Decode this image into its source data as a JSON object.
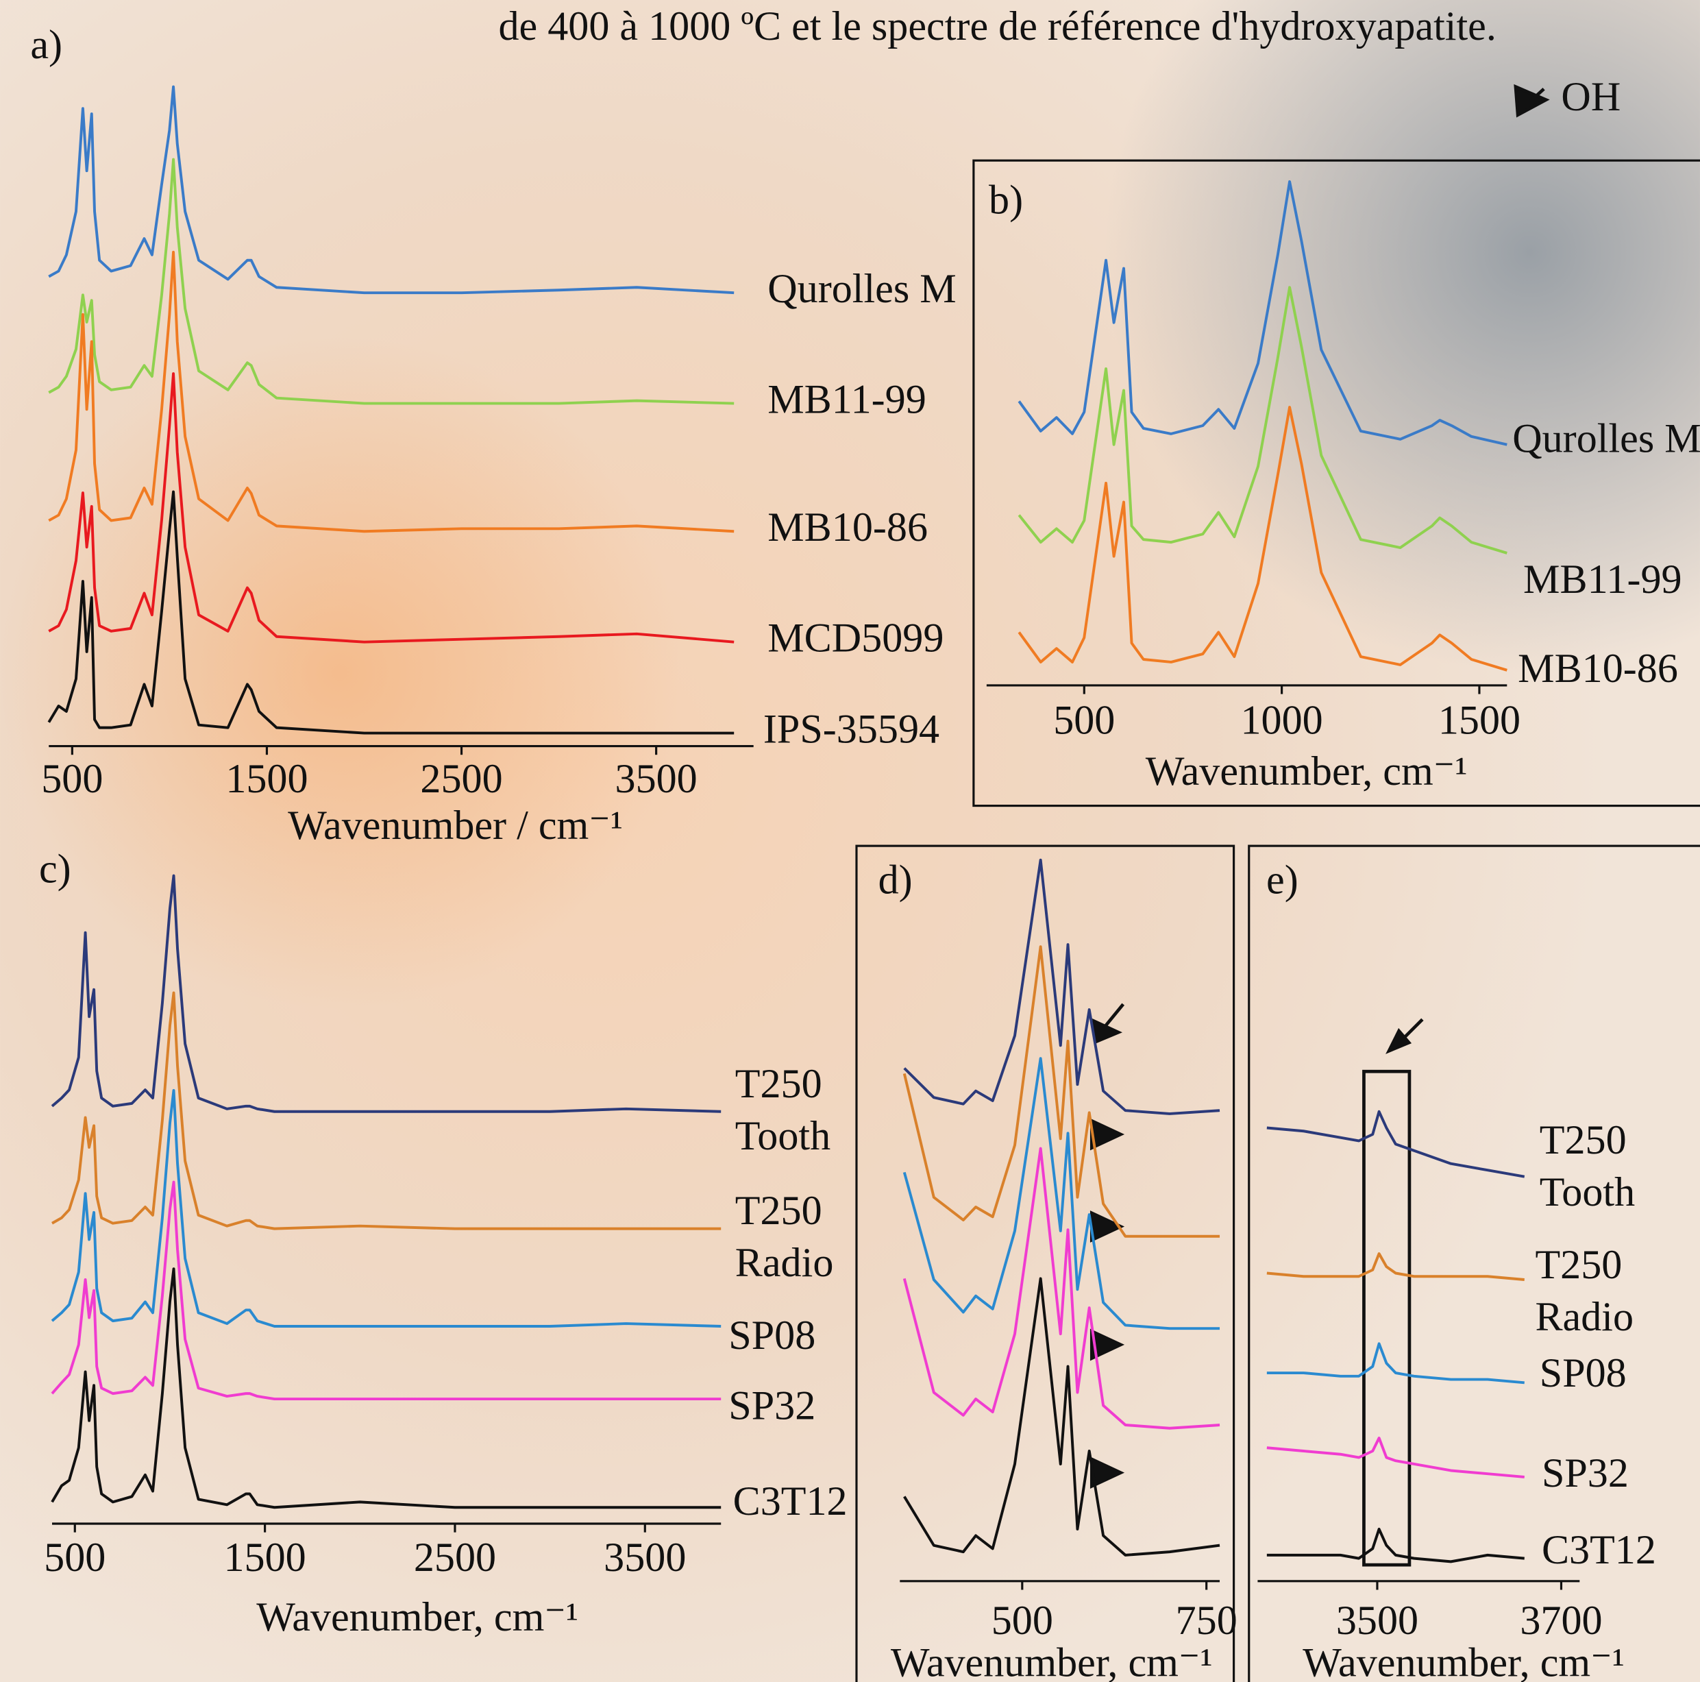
{
  "caption": "de 400 à 1000 ºC et le spectre de référence d'hydroxyapatite.",
  "annotation": "OH",
  "chart_data": [
    {
      "type": "line",
      "title": "a)",
      "x_label": "Wavenumber / cm⁻¹",
      "x": [
        380,
        430,
        470,
        520,
        555,
        575,
        600,
        615,
        640,
        700,
        800,
        870,
        910,
        960,
        1000,
        1020,
        1040,
        1080,
        1150,
        1300,
        1400,
        1420,
        1460,
        1550,
        2000,
        2500,
        3000,
        3400,
        3900
      ],
      "xlim": [
        380,
        4000
      ],
      "xticks": [
        500,
        1500,
        2500,
        3500
      ],
      "series": [
        {
          "name": "Qurolles M",
          "color": "#3a7bc8",
          "values": [
            0.06,
            0.08,
            0.14,
            0.3,
            0.68,
            0.45,
            0.66,
            0.3,
            0.12,
            0.08,
            0.1,
            0.2,
            0.14,
            0.4,
            0.6,
            0.76,
            0.55,
            0.3,
            0.12,
            0.05,
            0.12,
            0.12,
            0.06,
            0.02,
            0.0,
            0.0,
            0.01,
            0.02,
            0.0
          ]
        },
        {
          "name": "MB11-99",
          "color": "#8fd14f",
          "values": [
            0.04,
            0.06,
            0.1,
            0.2,
            0.4,
            0.3,
            0.38,
            0.18,
            0.08,
            0.05,
            0.06,
            0.14,
            0.1,
            0.4,
            0.7,
            0.9,
            0.65,
            0.35,
            0.12,
            0.05,
            0.15,
            0.14,
            0.07,
            0.02,
            0.0,
            0.0,
            0.0,
            0.01,
            0.0
          ]
        },
        {
          "name": "MB10-86",
          "color": "#f07b22",
          "values": [
            0.04,
            0.06,
            0.12,
            0.3,
            0.8,
            0.45,
            0.7,
            0.25,
            0.08,
            0.04,
            0.05,
            0.16,
            0.1,
            0.45,
            0.8,
            1.03,
            0.7,
            0.35,
            0.12,
            0.04,
            0.16,
            0.14,
            0.06,
            0.02,
            0.0,
            0.01,
            0.01,
            0.02,
            0.0
          ]
        },
        {
          "name": "MCD5099",
          "color": "#e8191f",
          "values": [
            0.04,
            0.06,
            0.12,
            0.3,
            0.55,
            0.35,
            0.5,
            0.2,
            0.06,
            0.04,
            0.05,
            0.18,
            0.1,
            0.45,
            0.8,
            0.99,
            0.7,
            0.35,
            0.1,
            0.04,
            0.2,
            0.18,
            0.08,
            0.02,
            0.0,
            0.01,
            0.02,
            0.03,
            0.0
          ]
        },
        {
          "name": "IPS-35594",
          "color": "#111111",
          "values": [
            0.04,
            0.1,
            0.08,
            0.2,
            0.56,
            0.3,
            0.5,
            0.05,
            0.02,
            0.02,
            0.03,
            0.18,
            0.1,
            0.45,
            0.75,
            0.89,
            0.65,
            0.2,
            0.03,
            0.02,
            0.18,
            0.16,
            0.08,
            0.02,
            0.0,
            0.0,
            0.0,
            0.0,
            0.0
          ]
        }
      ]
    },
    {
      "type": "line",
      "title": "b)",
      "x_label": "Wavenumber, cm⁻¹",
      "x": [
        335,
        390,
        430,
        470,
        500,
        555,
        575,
        600,
        620,
        650,
        720,
        800,
        840,
        880,
        940,
        990,
        1020,
        1050,
        1100,
        1200,
        1300,
        1380,
        1400,
        1430,
        1480,
        1570
      ],
      "xlim": [
        253,
        1570
      ],
      "xticks": [
        500,
        1000,
        1500
      ],
      "series": [
        {
          "name": "Qurolles M",
          "color": "#3a7bc8",
          "values": [
            0.16,
            0.05,
            0.1,
            0.04,
            0.12,
            0.68,
            0.45,
            0.65,
            0.12,
            0.06,
            0.04,
            0.07,
            0.13,
            0.06,
            0.3,
            0.7,
            0.97,
            0.75,
            0.35,
            0.05,
            0.02,
            0.07,
            0.09,
            0.07,
            0.03,
            0.0
          ]
        },
        {
          "name": "MB11-99",
          "color": "#8fd14f",
          "values": [
            0.14,
            0.04,
            0.09,
            0.04,
            0.12,
            0.68,
            0.4,
            0.6,
            0.1,
            0.05,
            0.04,
            0.07,
            0.15,
            0.06,
            0.32,
            0.72,
            0.98,
            0.76,
            0.36,
            0.05,
            0.02,
            0.1,
            0.13,
            0.1,
            0.04,
            0.0
          ]
        },
        {
          "name": "MB10-86",
          "color": "#f07b22",
          "values": [
            0.14,
            0.03,
            0.08,
            0.03,
            0.12,
            0.69,
            0.42,
            0.62,
            0.1,
            0.04,
            0.03,
            0.06,
            0.14,
            0.05,
            0.32,
            0.72,
            0.97,
            0.76,
            0.36,
            0.05,
            0.02,
            0.1,
            0.13,
            0.1,
            0.04,
            0.0
          ]
        }
      ]
    },
    {
      "type": "line",
      "title": "c)",
      "x_label": "Wavenumber, cm⁻¹",
      "x": [
        380,
        430,
        470,
        520,
        555,
        575,
        600,
        615,
        640,
        700,
        800,
        870,
        910,
        960,
        1000,
        1020,
        1040,
        1080,
        1150,
        1300,
        1400,
        1420,
        1460,
        1550,
        2000,
        2500,
        3000,
        3400,
        3900
      ],
      "xlim": [
        380,
        3900
      ],
      "xticks": [
        500,
        1500,
        2500,
        3500
      ],
      "series": [
        {
          "name": "T250 Tooth",
          "color": "#2b3a7a",
          "values": [
            0.02,
            0.05,
            0.08,
            0.2,
            0.66,
            0.35,
            0.45,
            0.15,
            0.05,
            0.02,
            0.03,
            0.08,
            0.05,
            0.4,
            0.75,
            0.87,
            0.6,
            0.25,
            0.05,
            0.01,
            0.02,
            0.02,
            0.01,
            0.0,
            0.0,
            0.0,
            0.0,
            0.01,
            0.0
          ]
        },
        {
          "name": "T250 Radio",
          "color": "#d9812b",
          "values": [
            0.02,
            0.04,
            0.07,
            0.18,
            0.41,
            0.3,
            0.38,
            0.12,
            0.04,
            0.02,
            0.03,
            0.08,
            0.05,
            0.4,
            0.75,
            0.87,
            0.6,
            0.25,
            0.05,
            0.01,
            0.03,
            0.03,
            0.01,
            0.0,
            0.01,
            0.0,
            0.0,
            0.0,
            0.0
          ]
        },
        {
          "name": "SP08",
          "color": "#2a8ad0",
          "values": [
            0.02,
            0.05,
            0.08,
            0.2,
            0.49,
            0.32,
            0.42,
            0.14,
            0.05,
            0.02,
            0.03,
            0.09,
            0.05,
            0.4,
            0.75,
            0.87,
            0.6,
            0.25,
            0.05,
            0.01,
            0.06,
            0.06,
            0.02,
            0.0,
            0.0,
            0.0,
            0.0,
            0.01,
            0.0
          ]
        },
        {
          "name": "SP32",
          "color": "#f03cd0",
          "values": [
            0.02,
            0.06,
            0.09,
            0.2,
            0.44,
            0.3,
            0.4,
            0.12,
            0.04,
            0.02,
            0.03,
            0.08,
            0.05,
            0.38,
            0.7,
            0.8,
            0.55,
            0.22,
            0.04,
            0.01,
            0.02,
            0.02,
            0.01,
            0.0,
            0.0,
            0.0,
            0.0,
            0.0,
            0.0
          ]
        },
        {
          "name": "C3T12",
          "color": "#111111",
          "values": [
            0.02,
            0.08,
            0.1,
            0.22,
            0.5,
            0.32,
            0.45,
            0.15,
            0.05,
            0.02,
            0.04,
            0.12,
            0.06,
            0.42,
            0.76,
            0.88,
            0.6,
            0.22,
            0.03,
            0.01,
            0.05,
            0.05,
            0.01,
            0.0,
            0.02,
            0.0,
            0.0,
            0.0,
            0.0
          ]
        }
      ]
    },
    {
      "type": "line",
      "title": "d)",
      "x_label": "Wavenumber, cm⁻¹",
      "x": [
        340,
        380,
        420,
        437,
        460,
        490,
        525,
        552,
        562,
        575,
        591,
        610,
        640,
        700,
        768
      ],
      "xlim": [
        334,
        768
      ],
      "xticks": [
        500,
        750
      ],
      "series": [
        {
          "name": null,
          "color": "#2b3a7a",
          "values": [
            0.15,
            0.06,
            0.04,
            0.08,
            0.05,
            0.25,
            0.79,
            0.22,
            0.53,
            0.1,
            0.33,
            0.08,
            0.02,
            0.01,
            0.02
          ]
        },
        {
          "name": null,
          "color": "#d9812b",
          "values": [
            0.5,
            0.12,
            0.05,
            0.09,
            0.06,
            0.28,
            0.89,
            0.3,
            0.6,
            0.12,
            0.38,
            0.1,
            0.0,
            0.0,
            0.0
          ]
        },
        {
          "name": null,
          "color": "#2a8ad0",
          "values": [
            0.48,
            0.15,
            0.05,
            0.1,
            0.06,
            0.3,
            0.83,
            0.3,
            0.6,
            0.12,
            0.35,
            0.08,
            0.01,
            0.0,
            0.0
          ]
        },
        {
          "name": null,
          "color": "#f03cd0",
          "values": [
            0.47,
            0.12,
            0.05,
            0.1,
            0.06,
            0.3,
            0.87,
            0.3,
            0.62,
            0.12,
            0.38,
            0.08,
            0.02,
            0.01,
            0.02
          ]
        },
        {
          "name": null,
          "color": "#111111",
          "values": [
            0.2,
            0.05,
            0.03,
            0.08,
            0.04,
            0.3,
            0.87,
            0.3,
            0.6,
            0.1,
            0.34,
            0.08,
            0.02,
            0.03,
            0.05
          ]
        }
      ]
    },
    {
      "type": "line",
      "title": "e)",
      "x_label": "Wavenumber, cm⁻¹",
      "x": [
        3380,
        3420,
        3460,
        3480,
        3495,
        3502,
        3510,
        3520,
        3540,
        3580,
        3620,
        3660
      ],
      "xlim": [
        3370,
        3720
      ],
      "xticks": [
        3500,
        3700
      ],
      "series": [
        {
          "name": "T250 Tooth",
          "color": "#2b3a7a",
          "values": [
            0.15,
            0.14,
            0.12,
            0.11,
            0.13,
            0.2,
            0.15,
            0.1,
            0.08,
            0.04,
            0.02,
            0.0
          ]
        },
        {
          "name": "T250 Radio",
          "color": "#d9812b",
          "values": [
            0.02,
            0.01,
            0.01,
            0.01,
            0.03,
            0.08,
            0.04,
            0.02,
            0.01,
            0.01,
            0.01,
            0.0
          ]
        },
        {
          "name": "SP08",
          "color": "#2a8ad0",
          "values": [
            0.03,
            0.03,
            0.02,
            0.02,
            0.05,
            0.12,
            0.06,
            0.03,
            0.02,
            0.01,
            0.01,
            0.0
          ]
        },
        {
          "name": "SP32",
          "color": "#f03cd0",
          "values": [
            0.09,
            0.08,
            0.07,
            0.06,
            0.08,
            0.12,
            0.06,
            0.05,
            0.04,
            0.02,
            0.01,
            0.0
          ]
        },
        {
          "name": "C3T12",
          "color": "#111111",
          "values": [
            0.02,
            0.02,
            0.02,
            0.01,
            0.04,
            0.1,
            0.05,
            0.02,
            0.01,
            0.0,
            0.02,
            0.01
          ]
        }
      ]
    }
  ]
}
